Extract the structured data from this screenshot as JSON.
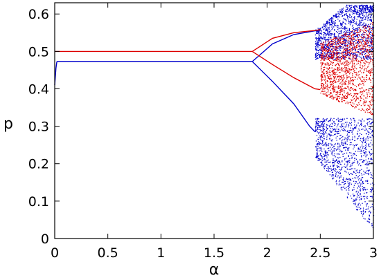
{
  "chart_data": {
    "type": "scatter",
    "title": "",
    "xlabel": "α",
    "ylabel": "p",
    "xlim": [
      0,
      3
    ],
    "ylim": [
      0,
      0.63
    ],
    "x_ticks": [
      0,
      0.5,
      1,
      1.5,
      2,
      2.5,
      3
    ],
    "x_tick_labels": [
      "0",
      "0.5",
      "1",
      "1.5",
      "2",
      "2.5",
      "3"
    ],
    "y_ticks": [
      0,
      0.1,
      0.2,
      0.3,
      0.4,
      0.5,
      0.6
    ],
    "y_tick_labels": [
      "0",
      "0.1",
      "0.2",
      "0.3",
      "0.4",
      "0.5",
      "0.6"
    ],
    "grid": false,
    "legend": "none",
    "series": [
      {
        "color": "#0000cc",
        "fixed_point": {
          "x": [
            0.02,
            1.86
          ],
          "y": 0.473
        },
        "period2_branches": [
          {
            "x": [
              1.86,
              2.05,
              2.25,
              2.45,
              2.5
            ],
            "y": [
              0.473,
              0.52,
              0.545,
              0.555,
              0.556
            ]
          },
          {
            "x": [
              1.86,
              2.05,
              2.25,
              2.4,
              2.45
            ],
            "y": [
              0.473,
              0.42,
              0.36,
              0.3,
              0.285
            ]
          }
        ],
        "chaotic_band": {
          "x": [
            2.45,
            3.0
          ],
          "y": [
            0.02,
            0.625
          ]
        }
      },
      {
        "color": "#dd0000",
        "fixed_point": {
          "x": [
            0.0,
            1.86
          ],
          "y": 0.5
        },
        "period2_branches": [
          {
            "x": [
              1.86,
              2.05,
              2.25,
              2.45,
              2.5
            ],
            "y": [
              0.5,
              0.535,
              0.55,
              0.556,
              0.558
            ]
          },
          {
            "x": [
              1.86,
              2.05,
              2.25,
              2.45,
              2.5
            ],
            "y": [
              0.5,
              0.465,
              0.43,
              0.4,
              0.398
            ]
          }
        ],
        "chaotic_band": {
          "x": [
            2.5,
            3.0
          ],
          "y": [
            0.33,
            0.58
          ]
        }
      }
    ]
  }
}
